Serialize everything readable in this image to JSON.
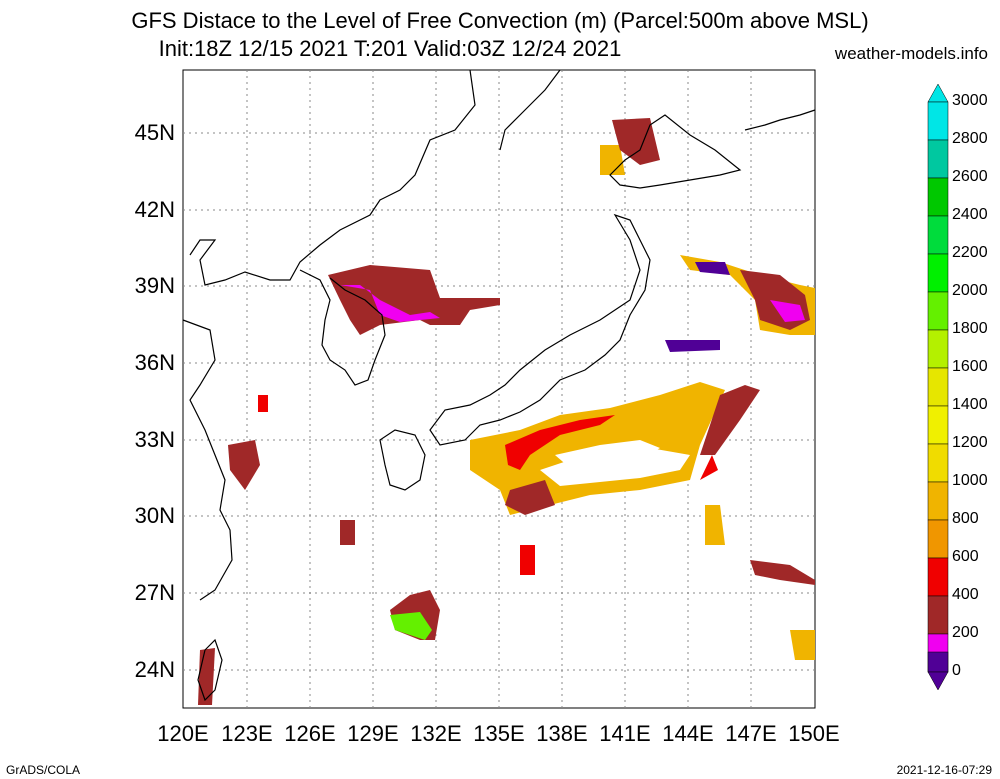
{
  "title_line1": "GFS Distace to the Level of Free Convection (m) (Parcel:500m above MSL)",
  "title_line2": "Init:18Z 12/15 2021 T:201 Valid:03Z 12/24 2021",
  "site": "weather-models.info",
  "footer_left": "GrADS/COLA",
  "footer_right": "2021-12-16-07:29",
  "lat_labels": [
    "45N",
    "42N",
    "39N",
    "36N",
    "33N",
    "30N",
    "27N",
    "24N"
  ],
  "lon_labels": [
    "120E",
    "123E",
    "126E",
    "129E",
    "132E",
    "135E",
    "138E",
    "141E",
    "144E",
    "147E",
    "150E"
  ],
  "colorbar": {
    "labels": [
      "3000",
      "2800",
      "2600",
      "2400",
      "2200",
      "2000",
      "1800",
      "1600",
      "1400",
      "1200",
      "1000",
      "800",
      "600",
      "400",
      "200",
      "0"
    ],
    "colors": [
      "#00e6e6",
      "#00c8a0",
      "#00c800",
      "#00dc3c",
      "#00f000",
      "#64f000",
      "#b4f000",
      "#e6e600",
      "#f0f000",
      "#f0dc00",
      "#f0b400",
      "#f09600",
      "#f00000",
      "#a02828",
      "#f000f0",
      "#500096"
    ]
  }
}
